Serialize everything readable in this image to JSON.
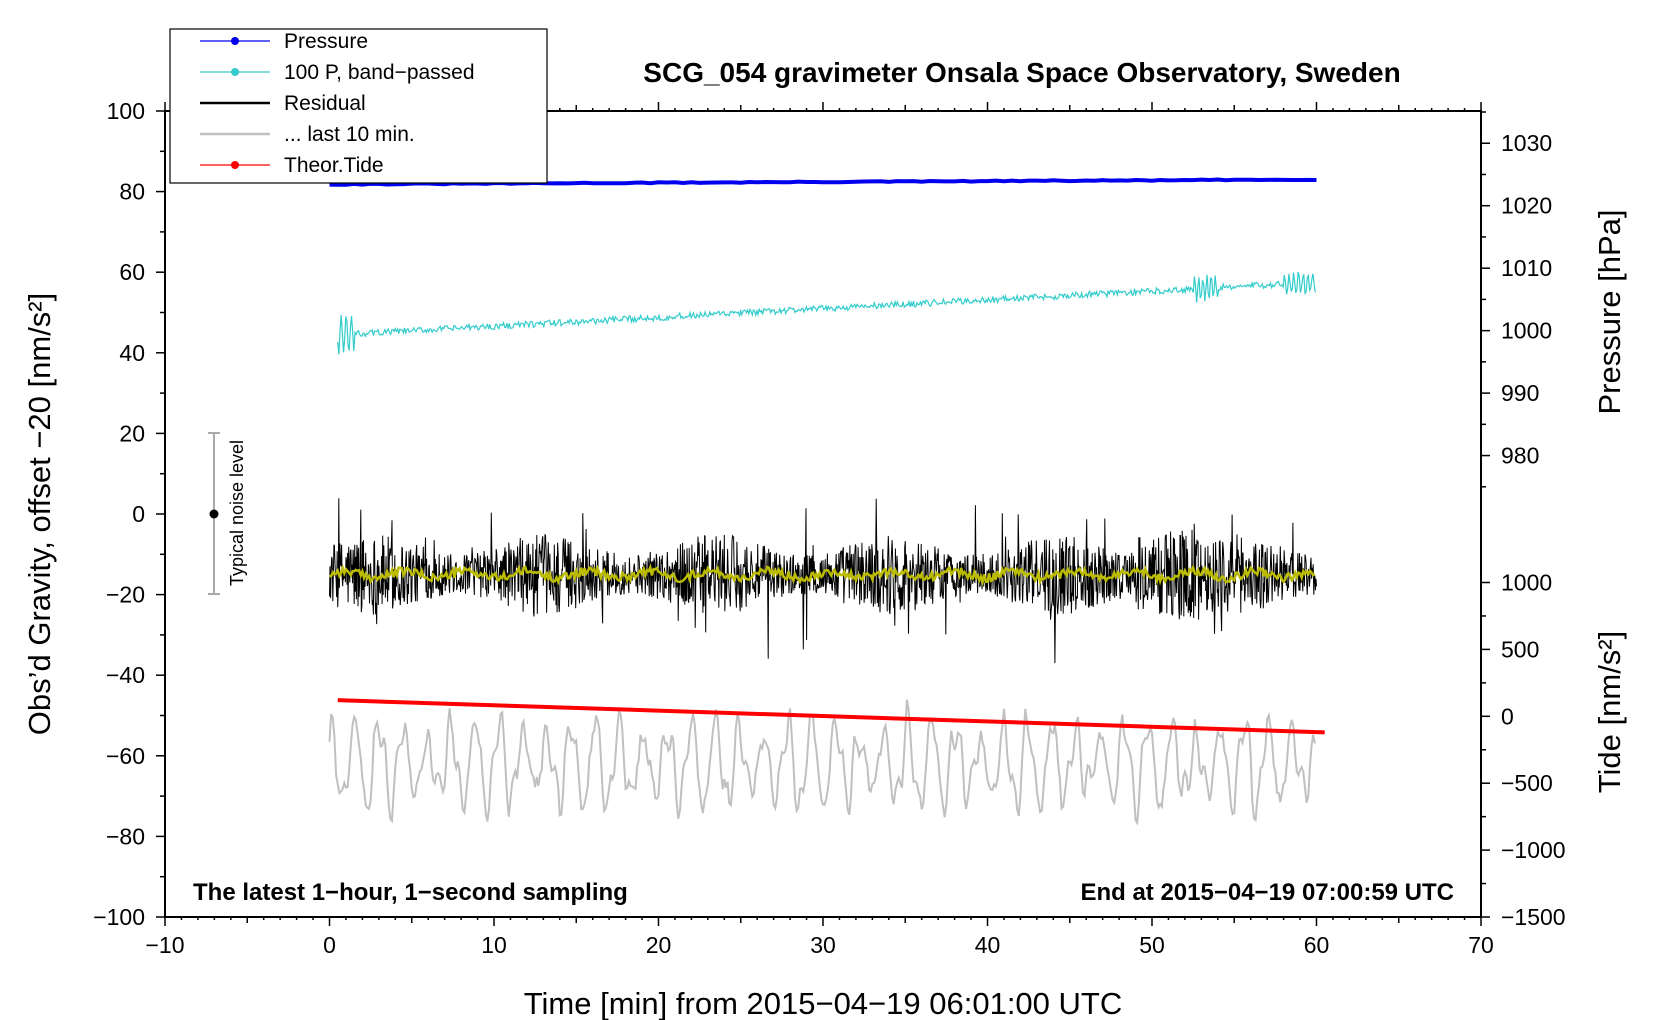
{
  "chart_data": {
    "type": "line",
    "title": "SCG_054 gravimeter Onsala Space Observatory, Sweden",
    "xlabel": "Time [min] from 2015−04−19 06:01:00 UTC",
    "ylabel_left": "Obs’d Gravity, offset −20 [nm/s²]",
    "ylabel_right_pressure": "Pressure [hPa]",
    "ylabel_right_tide": "Tide [nm/s²]",
    "annotation_left": "The latest 1−hour, 1−second sampling",
    "annotation_right": "End at 2015−04−19 07:00:59 UTC",
    "noise_label": "Typical noise level",
    "noise_bar": {
      "x": -7,
      "center": 0,
      "low": -20,
      "high": 20
    },
    "xlim": [
      -10,
      70
    ],
    "ylim": [
      -100,
      100
    ],
    "x_ticks": [
      -10,
      0,
      10,
      20,
      30,
      40,
      50,
      60,
      70
    ],
    "x_tick_labels": [
      "−10",
      "0",
      "10",
      "20",
      "30",
      "40",
      "50",
      "60",
      "70"
    ],
    "y_ticks": [
      -100,
      -80,
      -60,
      -40,
      -20,
      0,
      20,
      40,
      60,
      80,
      100
    ],
    "y_tick_labels": [
      "−100",
      "−80",
      "−60",
      "−40",
      "−20",
      "0",
      "20",
      "40",
      "60",
      "80",
      "100"
    ],
    "pressure_axis": {
      "ticks": [
        980,
        990,
        1000,
        1010,
        1020,
        1030
      ],
      "tick_labels": [
        "980",
        "990",
        "1000",
        "1010",
        "1020",
        "1030"
      ],
      "ref": [
        {
          "hpa": 980,
          "gravity": 14.5
        },
        {
          "hpa": 1030,
          "gravity": 92
        }
      ]
    },
    "tide_axis": {
      "ticks": [
        -1500,
        -1000,
        -500,
        0,
        500,
        1000
      ],
      "tick_labels": [
        "−1500",
        "−1000",
        "−500",
        "0",
        "500",
        "1000"
      ],
      "ref": [
        {
          "tide": -1500,
          "gravity": -100
        },
        {
          "tide": 1000,
          "gravity": -17
        }
      ]
    },
    "legend": [
      {
        "label": "Pressure",
        "color": "#0000ee",
        "marker": true
      },
      {
        "label": "100 P, band−passed",
        "color": "#33cccc",
        "marker": true
      },
      {
        "label": "Residual",
        "color": "#000000",
        "marker": false
      },
      {
        "label": "... last 10 min.",
        "color": "#c0c0c0",
        "marker": false
      },
      {
        "label": "Theor.Tide",
        "color": "#ff0000",
        "marker": true
      }
    ],
    "series": [
      {
        "name": "Pressure",
        "color": "#0000ee",
        "x_range": [
          0,
          60
        ],
        "y_start": 81.8,
        "y_end": 83.0
      },
      {
        "name": "100 P, band−passed",
        "color": "#33cccc",
        "x_range": [
          0.5,
          60
        ],
        "y_start": 44.5,
        "y_end": 57.5
      },
      {
        "name": "Residual",
        "color": "#000000",
        "x_range": [
          0,
          60
        ],
        "y_mean": -15,
        "y_min": -37,
        "y_max": 11
      },
      {
        "name": "Residual smoothed",
        "color": "#bbbb00",
        "x_range": [
          0,
          60
        ],
        "y_mean": -15
      },
      {
        "name": "... last 10 min.",
        "color": "#c0c0c0",
        "x_range": [
          0,
          60
        ],
        "y_mean": -62,
        "y_min": -82,
        "y_max": -36
      },
      {
        "name": "Theor.Tide",
        "color": "#ff0000",
        "x_range": [
          0.5,
          60.5
        ],
        "y_start": -46.2,
        "y_end": -54.2
      }
    ]
  }
}
